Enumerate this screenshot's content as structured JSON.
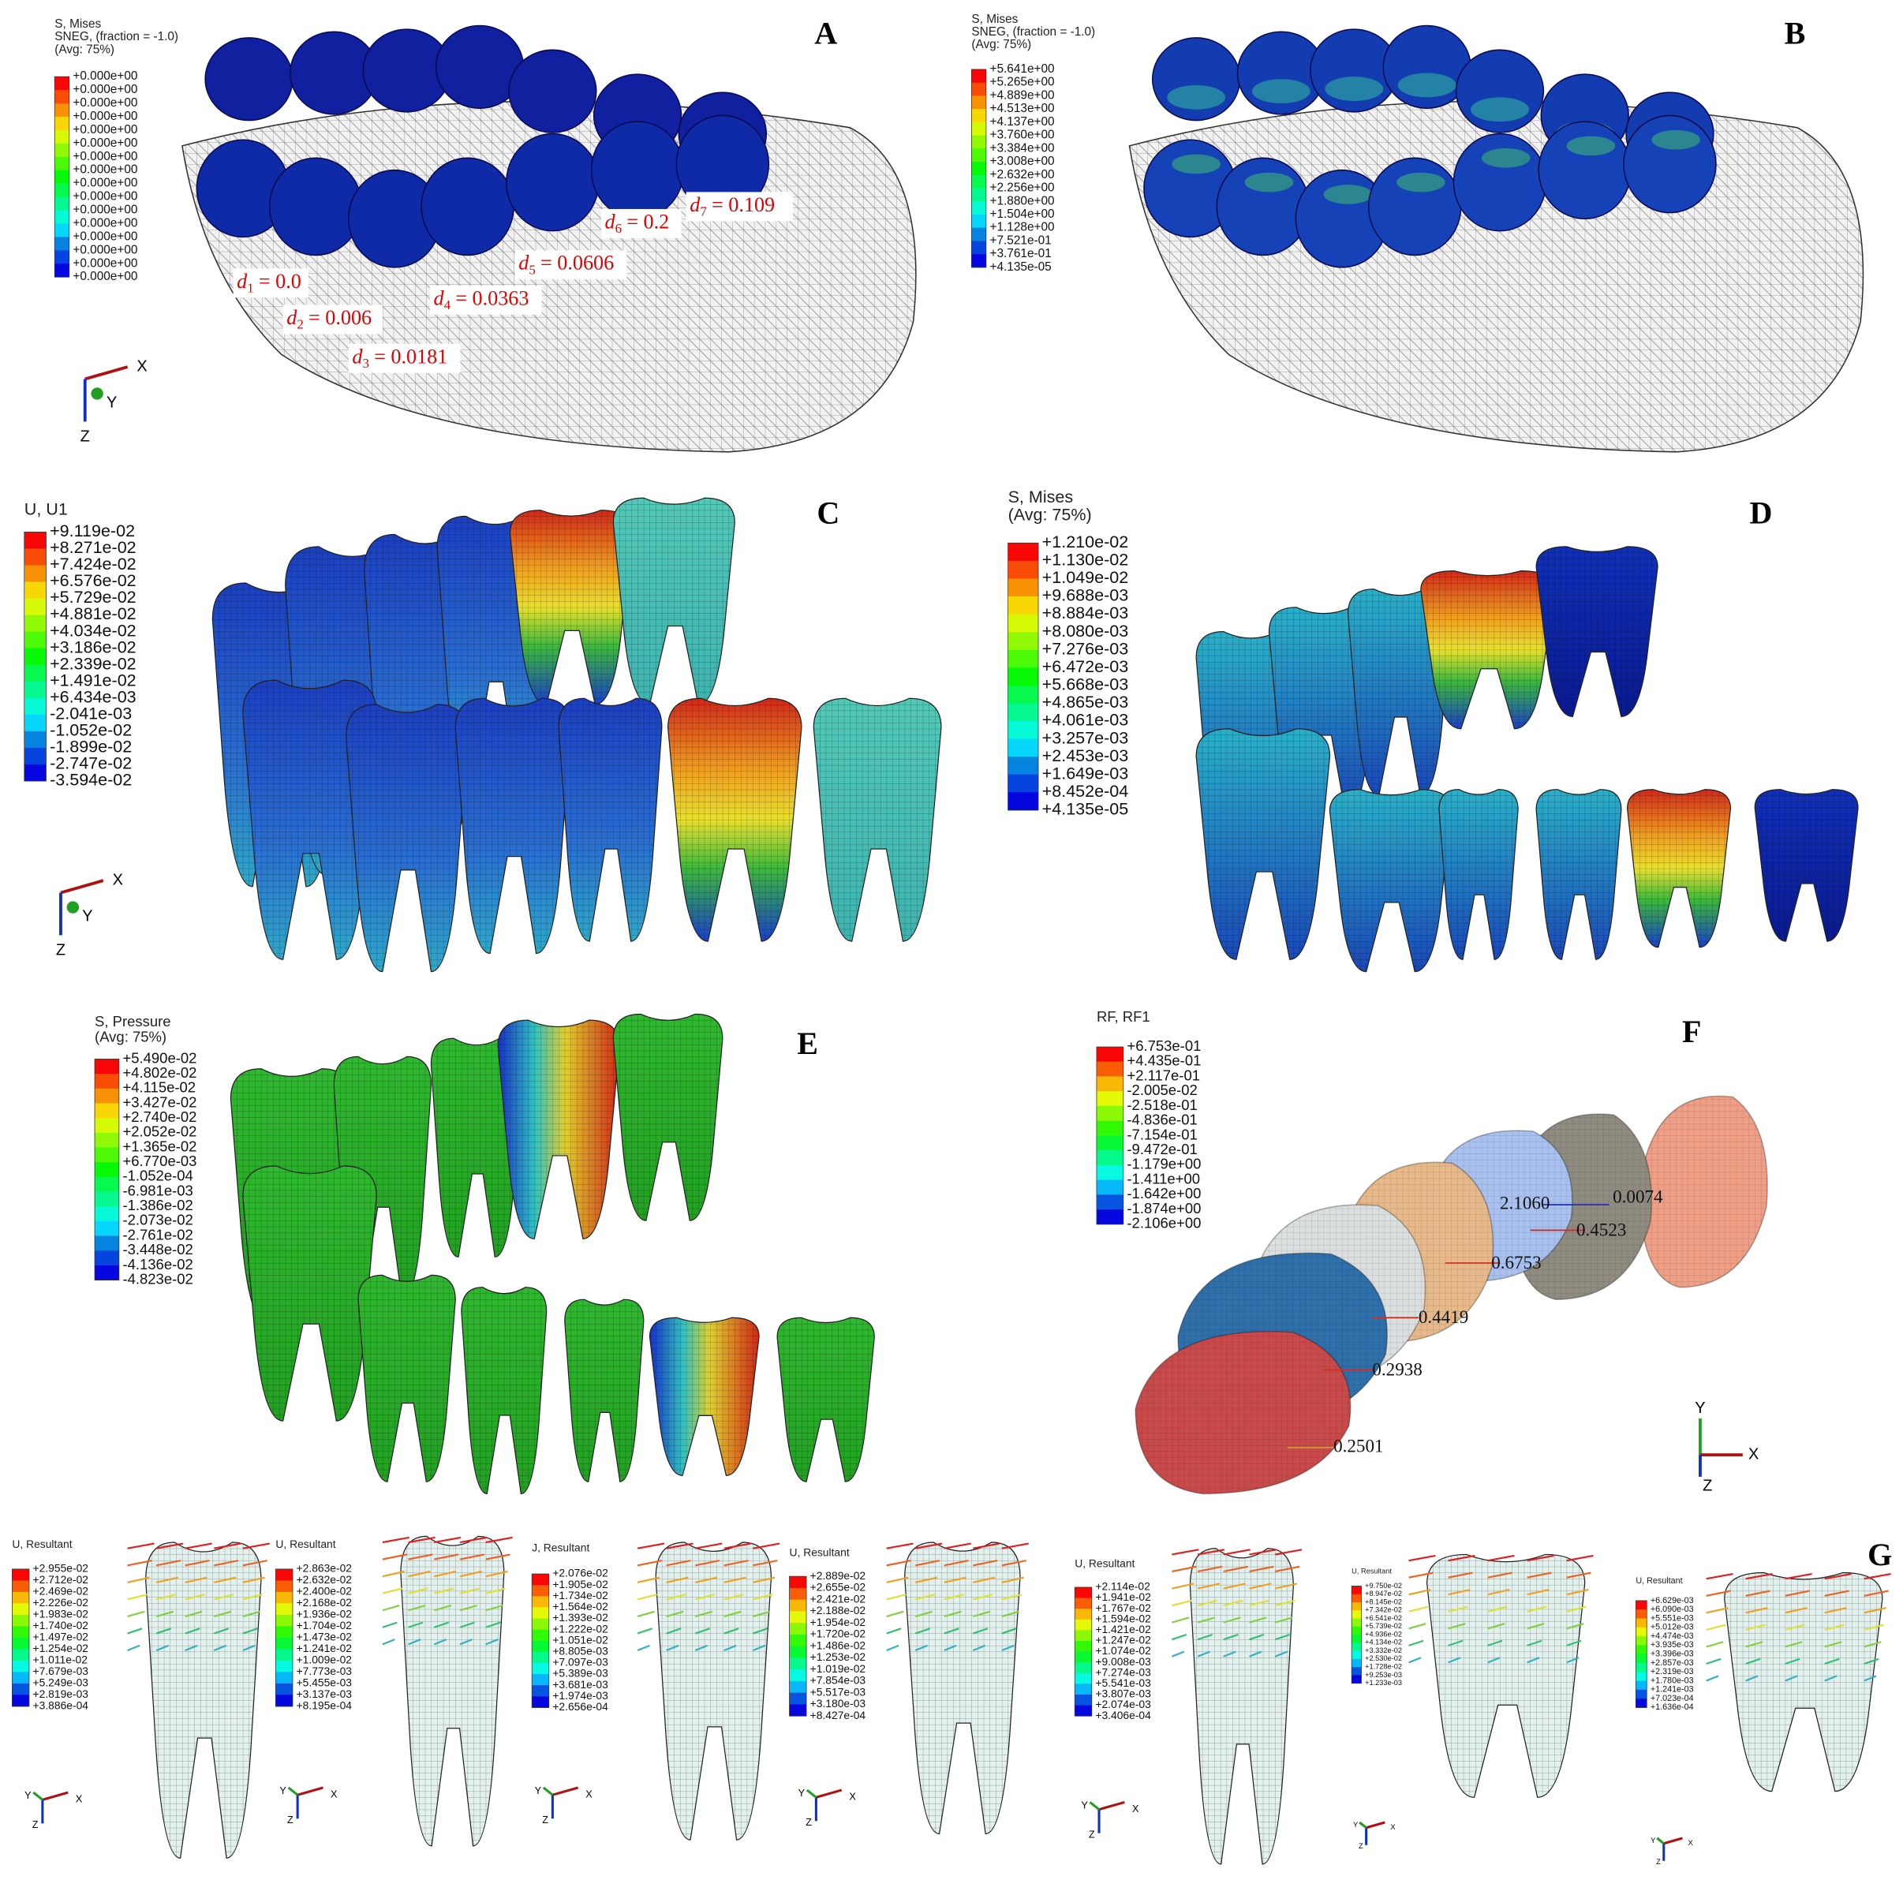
{
  "panels": [
    {
      "label": "A",
      "legend": {
        "title": [
          "S, Mises",
          "SNEG, (fraction = -1.0)",
          "(Avg: 75%)"
        ],
        "values": [
          "+0.000e+00",
          "+0.000e+00",
          "+0.000e+00",
          "+0.000e+00",
          "+0.000e+00",
          "+0.000e+00",
          "+0.000e+00",
          "+0.000e+00",
          "+0.000e+00",
          "+0.000e+00",
          "+0.000e+00",
          "+0.000e+00",
          "+0.000e+00",
          "+0.000e+00",
          "+0.000e+00",
          "+0.000e+00"
        ]
      },
      "annotations": [
        {
          "symbol": "d",
          "sub": "1",
          "text": "= 0.0"
        },
        {
          "symbol": "d",
          "sub": "2",
          "text": "= 0.006"
        },
        {
          "symbol": "d",
          "sub": "3",
          "text": "= 0.0181"
        },
        {
          "symbol": "d",
          "sub": "4",
          "text": "= 0.0363"
        },
        {
          "symbol": "d",
          "sub": "5",
          "text": "= 0.0606"
        },
        {
          "symbol": "d",
          "sub": "6",
          "text": "= 0.2"
        },
        {
          "symbol": "d",
          "sub": "7",
          "text": "= 0.109"
        }
      ],
      "triad": [
        "X",
        "Y",
        "Z"
      ]
    },
    {
      "label": "B",
      "legend": {
        "title": [
          "S, Mises",
          "SNEG, (fraction = -1.0)",
          "(Avg: 75%)"
        ],
        "values": [
          "+5.641e+00",
          "+5.265e+00",
          "+4.889e+00",
          "+4.513e+00",
          "+4.137e+00",
          "+3.760e+00",
          "+3.384e+00",
          "+3.008e+00",
          "+2.632e+00",
          "+2.256e+00",
          "+1.880e+00",
          "+1.504e+00",
          "+1.128e+00",
          "+7.521e-01",
          "+3.761e-01",
          "+4.135e-05"
        ]
      }
    },
    {
      "label": "C",
      "legend": {
        "title": [
          "U, U1"
        ],
        "values": [
          "+9.119e-02",
          "+8.271e-02",
          "+7.424e-02",
          "+6.576e-02",
          "+5.729e-02",
          "+4.881e-02",
          "+4.034e-02",
          "+3.186e-02",
          "+2.339e-02",
          "+1.491e-02",
          "+6.434e-03",
          "-2.041e-03",
          "-1.052e-02",
          "-1.899e-02",
          "-2.747e-02",
          "-3.594e-02"
        ]
      },
      "triad": [
        "X",
        "Y",
        "Z"
      ]
    },
    {
      "label": "D",
      "legend": {
        "title": [
          "S, Mises",
          "(Avg: 75%)"
        ],
        "values": [
          "+1.210e-02",
          "+1.130e-02",
          "+1.049e-02",
          "+9.688e-03",
          "+8.884e-03",
          "+8.080e-03",
          "+7.276e-03",
          "+6.472e-03",
          "+5.668e-03",
          "+4.865e-03",
          "+4.061e-03",
          "+3.257e-03",
          "+2.453e-03",
          "+1.649e-03",
          "+8.452e-04",
          "+4.135e-05"
        ]
      }
    },
    {
      "label": "E",
      "legend": {
        "title": [
          "S, Pressure",
          "(Avg: 75%)"
        ],
        "values": [
          "+5.490e-02",
          "+4.802e-02",
          "+4.115e-02",
          "+3.427e-02",
          "+2.740e-02",
          "+2.052e-02",
          "+1.365e-02",
          "+6.770e-03",
          "-1.052e-04",
          "-6.981e-03",
          "-1.386e-02",
          "-2.073e-02",
          "-2.761e-02",
          "-3.448e-02",
          "-4.136e-02",
          "-4.823e-02"
        ]
      }
    },
    {
      "label": "F",
      "legend": {
        "title": [
          "RF, RF1"
        ],
        "values": [
          "+6.753e-01",
          "+4.435e-01",
          "+2.117e-01",
          "-2.005e-02",
          "-2.518e-01",
          "-4.836e-01",
          "-7.154e-01",
          "-9.472e-01",
          "-1.179e+00",
          "-1.411e+00",
          "-1.642e+00",
          "-1.874e+00",
          "-2.106e+00"
        ]
      },
      "annotations": [
        {
          "text": "2.1060"
        },
        {
          "text": "0.0074"
        },
        {
          "text": "0.4523"
        },
        {
          "text": "0.6753"
        },
        {
          "text": "0.4419"
        },
        {
          "text": "0.2938"
        },
        {
          "text": "0.2501"
        }
      ],
      "triad": [
        "Y",
        "X",
        "Z"
      ]
    },
    {
      "label": "G",
      "legends": [
        {
          "title": [
            "U, Resultant"
          ],
          "values": [
            "+2.955e-02",
            "+2.712e-02",
            "+2.469e-02",
            "+2.226e-02",
            "+1.983e-02",
            "+1.740e-02",
            "+1.497e-02",
            "+1.254e-02",
            "+1.011e-02",
            "+7.679e-03",
            "+5.249e-03",
            "+2.819e-03",
            "+3.886e-04"
          ]
        },
        {
          "title": [
            "U, Resultant"
          ],
          "values": [
            "+2.863e-02",
            "+2.632e-02",
            "+2.400e-02",
            "+2.168e-02",
            "+1.936e-02",
            "+1.704e-02",
            "+1.473e-02",
            "+1.241e-02",
            "+1.009e-02",
            "+7.773e-03",
            "+5.455e-03",
            "+3.137e-03",
            "+8.195e-04"
          ]
        },
        {
          "title": [
            "J, Resultant"
          ],
          "values": [
            "+2.076e-02",
            "+1.905e-02",
            "+1.734e-02",
            "+1.564e-02",
            "+1.393e-02",
            "+1.222e-02",
            "+1.051e-02",
            "+8.805e-03",
            "+7.097e-03",
            "+5.389e-03",
            "+3.681e-03",
            "+1.974e-03",
            "+2.656e-04"
          ]
        },
        {
          "title": [
            "U, Resultant"
          ],
          "values": [
            "+2.889e-02",
            "+2.655e-02",
            "+2.421e-02",
            "+2.188e-02",
            "+1.954e-02",
            "+1.720e-02",
            "+1.486e-02",
            "+1.253e-02",
            "+1.019e-02",
            "+7.854e-03",
            "+5.517e-03",
            "+3.180e-03",
            "+8.427e-04"
          ]
        },
        {
          "title": [
            "U, Resultant"
          ],
          "values": [
            "+2.114e-02",
            "+1.941e-02",
            "+1.767e-02",
            "+1.594e-02",
            "+1.421e-02",
            "+1.247e-02",
            "+1.074e-02",
            "+9.008e-03",
            "+7.274e-03",
            "+5.541e-03",
            "+3.807e-03",
            "+2.074e-03",
            "+3.406e-04"
          ]
        },
        {
          "title": [
            "U, Resultant"
          ],
          "values": [
            "+9.750e-02",
            "+8.947e-02",
            "+8.145e-02",
            "+7.342e-02",
            "+6.541e-02",
            "+5.739e-02",
            "+4.936e-02",
            "+4.134e-02",
            "+3.332e-02",
            "+2.530e-02",
            "+1.728e-02",
            "+9.253e-03",
            "+1.233e-03"
          ]
        },
        {
          "title": [
            "U, Resultant"
          ],
          "values": [
            "+6.629e-03",
            "+6.090e-03",
            "+5.551e-03",
            "+5.012e-03",
            "+4.474e-03",
            "+3.935e-03",
            "+3.396e-03",
            "+2.857e-03",
            "+2.319e-03",
            "+1.780e-03",
            "+1.241e-03",
            "+7.023e-04",
            "+1.636e-04"
          ]
        }
      ],
      "triads": [
        [
          "Y",
          "Z",
          "X"
        ],
        [
          "Y",
          "Z",
          "X"
        ],
        [
          "Y",
          "Z",
          "X"
        ],
        [
          "Y",
          "Z",
          "X"
        ],
        [
          "Y",
          "Z",
          "X"
        ],
        [
          "Y",
          "Z",
          "X"
        ],
        [
          "Y",
          "Z",
          "X"
        ]
      ]
    }
  ]
}
